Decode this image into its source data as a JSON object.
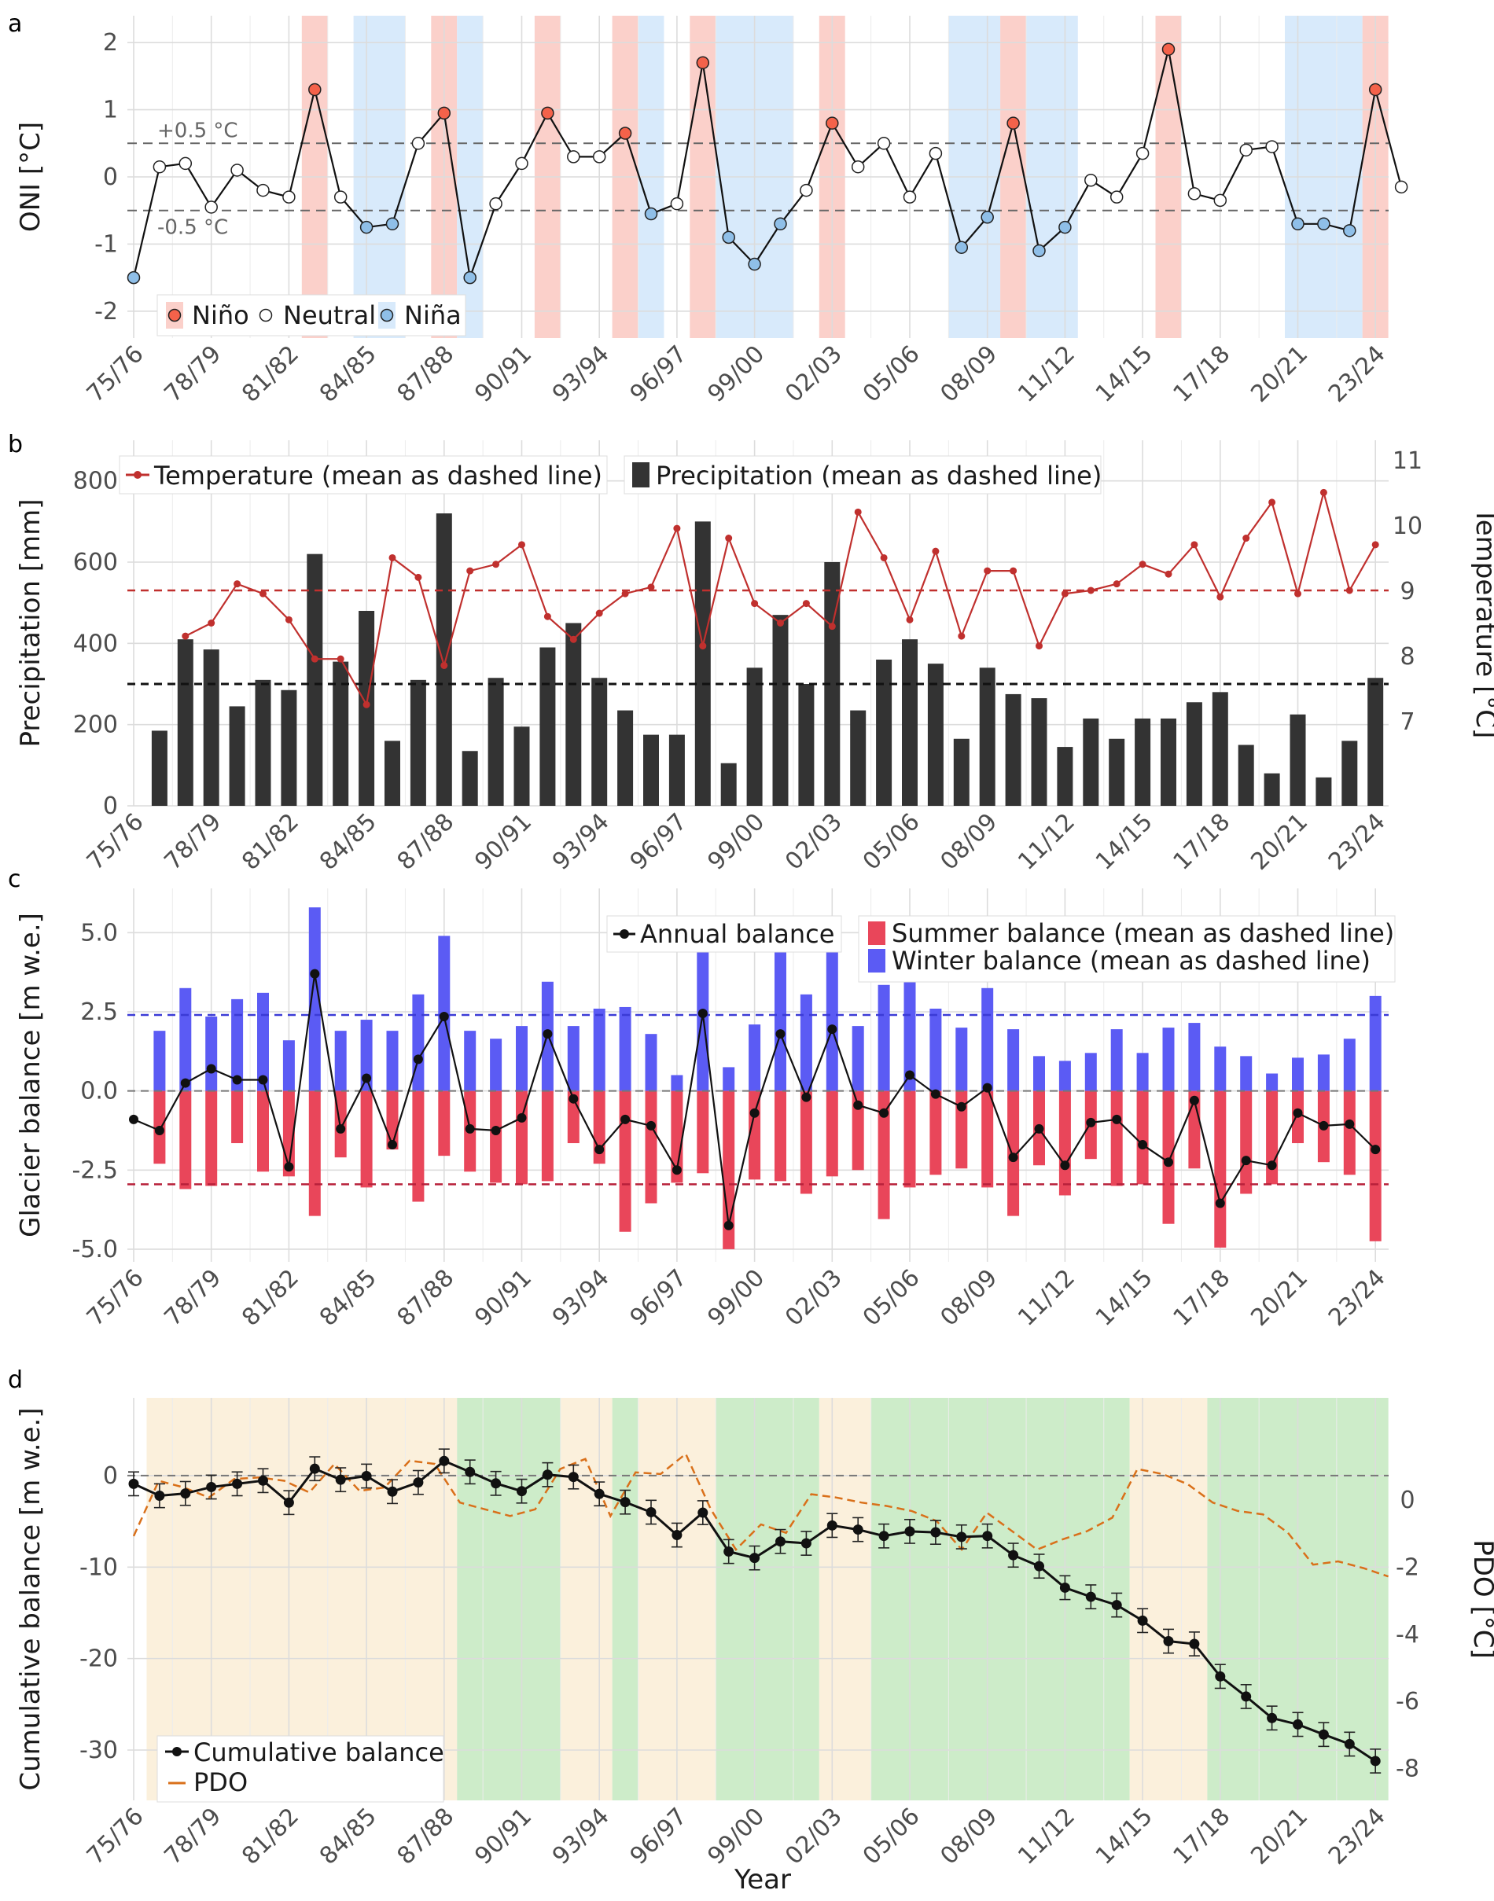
{
  "xlabel": "Year",
  "ticks": [
    "75/76",
    "78/79",
    "81/82",
    "84/85",
    "87/88",
    "90/91",
    "93/94",
    "96/97",
    "99/00",
    "02/03",
    "05/06",
    "08/09",
    "11/12",
    "14/15",
    "17/18",
    "20/21",
    "23/24"
  ],
  "colors": {
    "nino": "#f4624a",
    "nina": "#8fbfe8",
    "nino_band": "#fbd0ca",
    "nina_band": "#d8eafb",
    "temperature": "#c0302e",
    "precipitation": "#333333",
    "summer": "#e9465a",
    "winter": "#5b5bf4",
    "pdo": "#d9701a",
    "warm_band": "#fbf0dc",
    "cool_band": "#cdecc9"
  },
  "chart_data": [
    {
      "panel": "a",
      "type": "line",
      "ylabel": "ONI [°C]",
      "ylim": [
        -2.4,
        2.4
      ],
      "yticks": [
        -2,
        -1,
        0,
        1,
        2
      ],
      "thresholds": [
        0.5,
        -0.5
      ],
      "threshold_labels": [
        "+0.5 °C",
        "-0.5 °C"
      ],
      "legend": {
        "position": "bottom-left",
        "entries": [
          "Niño",
          "Neutral",
          "Niña"
        ]
      },
      "x": [
        "75/76",
        "76/77",
        "77/78",
        "78/79",
        "79/80",
        "80/81",
        "81/82",
        "82/83",
        "83/84",
        "84/85",
        "85/86",
        "86/87",
        "87/88",
        "88/89",
        "89/90",
        "90/91",
        "91/92",
        "92/93",
        "93/94",
        "94/95",
        "95/96",
        "96/97",
        "97/98",
        "98/99",
        "99/00",
        "00/01",
        "01/02",
        "02/03",
        "03/04",
        "04/05",
        "05/06",
        "06/07",
        "07/08",
        "08/09",
        "09/10",
        "10/11",
        "11/12",
        "12/13",
        "13/14",
        "14/15",
        "15/16",
        "16/17",
        "17/18",
        "18/19",
        "19/20",
        "20/21",
        "21/22",
        "22/23",
        "23/24",
        "24/25"
      ],
      "values": [
        -1.5,
        0.15,
        0.2,
        -0.45,
        0.1,
        -0.2,
        -0.3,
        1.3,
        -0.3,
        -0.75,
        -0.7,
        0.5,
        0.95,
        -1.5,
        -0.4,
        0.2,
        0.95,
        0.3,
        0.3,
        0.65,
        -0.55,
        -0.4,
        1.7,
        -0.9,
        -1.3,
        -0.7,
        -0.2,
        0.8,
        0.15,
        0.5,
        -0.3,
        0.35,
        -1.05,
        -0.6,
        0.8,
        -1.1,
        -0.75,
        -0.05,
        -0.3,
        0.35,
        1.9,
        -0.25,
        -0.35,
        0.4,
        0.45,
        -0.7,
        -0.7,
        -0.8,
        1.3,
        -0.15
      ],
      "phase": [
        "nina",
        "neutral",
        "neutral",
        "neutral",
        "neutral",
        "neutral",
        "neutral",
        "nino",
        "neutral",
        "nina",
        "nina",
        "neutral",
        "nino",
        "nina",
        "neutral",
        "neutral",
        "nino",
        "neutral",
        "neutral",
        "nino",
        "nina",
        "neutral",
        "nino",
        "nina",
        "nina",
        "nina",
        "neutral",
        "nino",
        "neutral",
        "neutral",
        "neutral",
        "neutral",
        "nina",
        "nina",
        "nino",
        "nina",
        "nina",
        "neutral",
        "neutral",
        "neutral",
        "nino",
        "neutral",
        "neutral",
        "neutral",
        "neutral",
        "nina",
        "nina",
        "nina",
        "nino",
        "neutral"
      ],
      "bands": [
        {
          "phase": "nino",
          "x": [
            7,
            7
          ]
        },
        {
          "phase": "nina",
          "x": [
            9,
            10
          ]
        },
        {
          "phase": "nino",
          "x": [
            12,
            12
          ]
        },
        {
          "phase": "nina",
          "x": [
            13,
            13
          ]
        },
        {
          "phase": "nino",
          "x": [
            16,
            16
          ]
        },
        {
          "phase": "nino",
          "x": [
            19,
            19
          ]
        },
        {
          "phase": "nina",
          "x": [
            20,
            20
          ]
        },
        {
          "phase": "nino",
          "x": [
            22,
            22
          ]
        },
        {
          "phase": "nina",
          "x": [
            23,
            25
          ]
        },
        {
          "phase": "nino",
          "x": [
            27,
            27
          ]
        },
        {
          "phase": "nina",
          "x": [
            32,
            33
          ]
        },
        {
          "phase": "nino",
          "x": [
            34,
            34
          ]
        },
        {
          "phase": "nina",
          "x": [
            35,
            36
          ]
        },
        {
          "phase": "nino",
          "x": [
            40,
            40
          ]
        },
        {
          "phase": "nina",
          "x": [
            45,
            47
          ]
        },
        {
          "phase": "nino",
          "x": [
            48,
            48
          ]
        }
      ]
    },
    {
      "panel": "b",
      "type": "bar+line",
      "ylabel": "Precipitation [mm]",
      "y2label": "Temperature [°C]",
      "ylim": [
        0,
        900
      ],
      "yticks": [
        0,
        200,
        400,
        600,
        800
      ],
      "y2lim": [
        5.7,
        11.3
      ],
      "y2ticks": [
        7,
        8,
        9,
        10,
        11
      ],
      "legend": {
        "position": "top",
        "entries": [
          "Temperature (mean as dashed line)",
          "Precipitation (mean as dashed line)"
        ]
      },
      "precipitation": [
        185,
        410,
        385,
        245,
        310,
        285,
        620,
        355,
        480,
        160,
        310,
        720,
        135,
        315,
        195,
        390,
        450,
        315,
        235,
        175,
        175,
        700,
        105,
        340,
        470,
        300,
        600,
        235,
        360,
        410,
        350,
        165,
        340,
        275,
        265,
        145,
        215,
        165,
        215,
        215,
        255,
        280,
        150,
        80,
        225,
        70,
        160,
        315
      ],
      "precipitation_mean": 300,
      "temperature": [
        8.3,
        8.5,
        9.1,
        8.95,
        8.55,
        7.95,
        7.95,
        7.25,
        9.5,
        9.2,
        7.85,
        9.3,
        9.4,
        9.7,
        8.6,
        8.25,
        8.65,
        8.95,
        9.05,
        9.95,
        8.15,
        9.8,
        8.8,
        8.5,
        8.8,
        8.45,
        10.2,
        9.5,
        8.55,
        9.6,
        8.3,
        9.3,
        9.3,
        8.15,
        8.95,
        9.0,
        9.1,
        9.4,
        9.25,
        9.7,
        8.9,
        9.8,
        10.35,
        8.95,
        10.5,
        9.0,
        9.7
      ],
      "temperature_mean": 9.0
    },
    {
      "panel": "c",
      "type": "bar+line",
      "ylabel": "Glacier balance [m w.e.]",
      "ylim": [
        -5.4,
        6.4
      ],
      "yticks": [
        -5.0,
        -2.5,
        0.0,
        2.5,
        5.0
      ],
      "ytick_labels": [
        "-5.0",
        "-2.5",
        "0.0",
        "2.5",
        "5.0"
      ],
      "legend": {
        "position": "top-right",
        "entries": [
          "Annual balance",
          "Summer balance (mean as dashed line)",
          "Winter balance (mean as dashed line)"
        ]
      },
      "winter": [
        1.9,
        3.25,
        2.35,
        2.9,
        3.1,
        1.6,
        5.8,
        1.9,
        2.25,
        1.9,
        3.05,
        4.9,
        1.9,
        1.65,
        2.05,
        3.45,
        2.05,
        2.6,
        2.65,
        1.8,
        0.5,
        5.05,
        0.75,
        2.1,
        4.7,
        3.05,
        4.7,
        2.05,
        3.35,
        3.6,
        2.6,
        2.0,
        3.25,
        1.95,
        1.1,
        0.95,
        1.2,
        1.95,
        1.2,
        2.0,
        2.15,
        1.4,
        1.1,
        0.55,
        1.05,
        1.15,
        1.65,
        3.0
      ],
      "summer": [
        -2.3,
        -3.1,
        -3.0,
        -1.65,
        -2.55,
        -2.7,
        -3.95,
        -2.1,
        -3.05,
        -1.85,
        -3.5,
        -2.05,
        -2.55,
        -2.9,
        -2.95,
        -2.85,
        -1.65,
        -2.3,
        -4.45,
        -3.55,
        -2.9,
        -2.6,
        -5.0,
        -2.8,
        -2.85,
        -3.25,
        -2.7,
        -2.5,
        -4.05,
        -3.05,
        -2.65,
        -2.45,
        -3.05,
        -3.95,
        -2.35,
        -3.3,
        -2.15,
        -3.0,
        -2.95,
        -4.2,
        -2.45,
        -4.95,
        -3.25,
        -2.95,
        -1.65,
        -2.25,
        -2.65,
        -4.75
      ],
      "annual": [
        -0.9,
        -1.25,
        0.25,
        0.7,
        0.35,
        0.35,
        -2.4,
        3.7,
        -1.2,
        0.4,
        -1.7,
        1.0,
        2.35,
        -1.2,
        -1.25,
        -0.85,
        1.8,
        -0.25,
        -1.85,
        -0.9,
        -1.1,
        -2.5,
        2.45,
        -4.25,
        -0.7,
        1.8,
        -0.2,
        1.95,
        -0.45,
        -0.7,
        0.5,
        -0.1,
        -0.5,
        0.1,
        -2.1,
        -1.2,
        -2.35,
        -1.0,
        -0.9,
        -1.7,
        -2.25,
        -0.3,
        -3.55,
        -2.2,
        -2.35,
        -0.7,
        -1.1,
        -1.05,
        -1.85
      ],
      "winter_mean": 2.4,
      "summer_mean": -2.95
    },
    {
      "panel": "d",
      "type": "line",
      "ylabel": "Cumulative balance [m w.e.]",
      "y2label": "PDO [°C]",
      "ylim": [
        -35.5,
        8.5
      ],
      "yticks": [
        -30,
        -20,
        -10,
        0
      ],
      "y2lim": [
        -8.97,
        3.02
      ],
      "y2ticks": [
        -8,
        -6,
        -4,
        -2,
        0
      ],
      "legend": {
        "position": "bottom-left",
        "entries": [
          "Cumulative balance",
          "PDO"
        ]
      },
      "cumulative": [
        -0.9,
        -2.2,
        -1.95,
        -1.25,
        -0.9,
        -0.55,
        -2.95,
        0.75,
        -0.45,
        -0.05,
        -1.75,
        -0.75,
        1.6,
        0.4,
        -0.85,
        -1.7,
        0.1,
        -0.15,
        -2.0,
        -2.9,
        -4.0,
        -6.5,
        -4.05,
        -8.3,
        -9.0,
        -7.2,
        -7.4,
        -5.45,
        -5.9,
        -6.6,
        -6.1,
        -6.2,
        -6.7,
        -6.6,
        -8.7,
        -9.9,
        -12.25,
        -13.25,
        -14.15,
        -15.85,
        -18.1,
        -18.4,
        -21.95,
        -24.15,
        -26.5,
        -27.2,
        -28.3,
        -29.35,
        -31.2
      ],
      "cumulative_error": 1.3,
      "pdo": [
        -1.1,
        0.55,
        0.35,
        0.05,
        0.6,
        0.65,
        0.55,
        0.2,
        1.05,
        0.25,
        0.35,
        1.15,
        1.05,
        -0.1,
        -0.3,
        -0.5,
        -0.3,
        0.9,
        1.2,
        -0.5,
        0.8,
        0.75,
        1.35,
        -0.3,
        -1.5,
        -0.75,
        -1.0,
        0.15,
        0.05,
        -0.1,
        -0.2,
        -0.35,
        -0.65,
        -1.5,
        -0.4,
        -0.95,
        -1.5,
        -1.2,
        -0.95,
        -0.55,
        0.9,
        0.75,
        0.45,
        -0.1,
        -0.35,
        -0.45,
        -1.0,
        -1.95,
        -1.85,
        -2.05,
        -2.3
      ],
      "bands": [
        {
          "phase": "warm",
          "x": [
            0.5,
            12.5
          ]
        },
        {
          "phase": "cool",
          "x": [
            12.5,
            16.5
          ]
        },
        {
          "phase": "warm",
          "x": [
            16.5,
            18.5
          ]
        },
        {
          "phase": "cool",
          "x": [
            18.5,
            19.5
          ]
        },
        {
          "phase": "warm",
          "x": [
            19.5,
            22.5
          ]
        },
        {
          "phase": "cool",
          "x": [
            22.5,
            26.5
          ]
        },
        {
          "phase": "warm",
          "x": [
            26.5,
            28.5
          ]
        },
        {
          "phase": "cool",
          "x": [
            28.5,
            38.5
          ]
        },
        {
          "phase": "warm",
          "x": [
            38.5,
            41.5
          ]
        },
        {
          "phase": "cool",
          "x": [
            41.5,
            48.5
          ]
        }
      ]
    }
  ]
}
